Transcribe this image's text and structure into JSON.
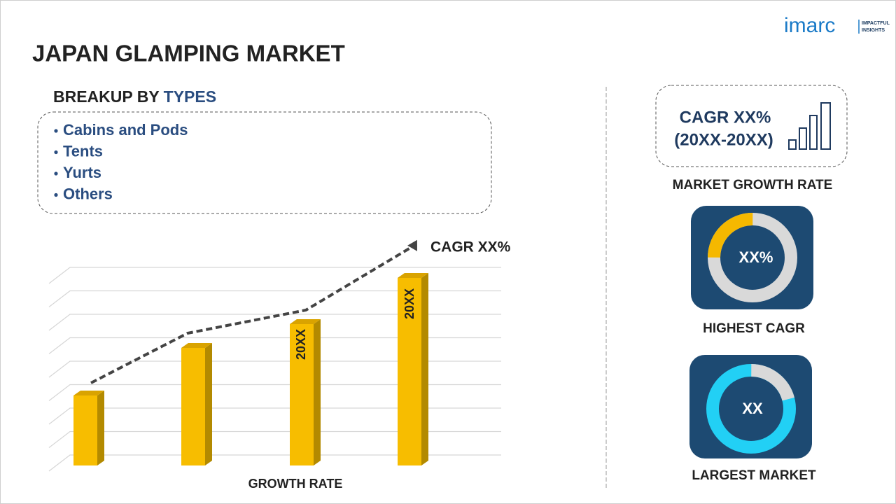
{
  "header": {
    "title": "JAPAN GLAMPING MARKET",
    "logo": "imarc",
    "logo_tagline": [
      "IMPACTFUL",
      "INSIGHTS"
    ]
  },
  "breakup": {
    "label": "BREAKUP BY",
    "dimension": "TYPES",
    "items": [
      "Cabins and Pods",
      "Tents",
      "Yurts",
      "Others"
    ]
  },
  "growth_chart": {
    "cagr_label": "CAGR XX%",
    "bar_labels": [
      "20XX",
      "20XX"
    ],
    "axis_label": "GROWTH RATE"
  },
  "kpis": [
    {
      "value": "CAGR XX%",
      "period": "(20XX-20XX)",
      "label": "MARKET GROWTH RATE"
    },
    {
      "value": "XX%",
      "label": "HIGHEST CAGR"
    },
    {
      "value": "XX",
      "label": "LARGEST MARKET"
    }
  ]
}
